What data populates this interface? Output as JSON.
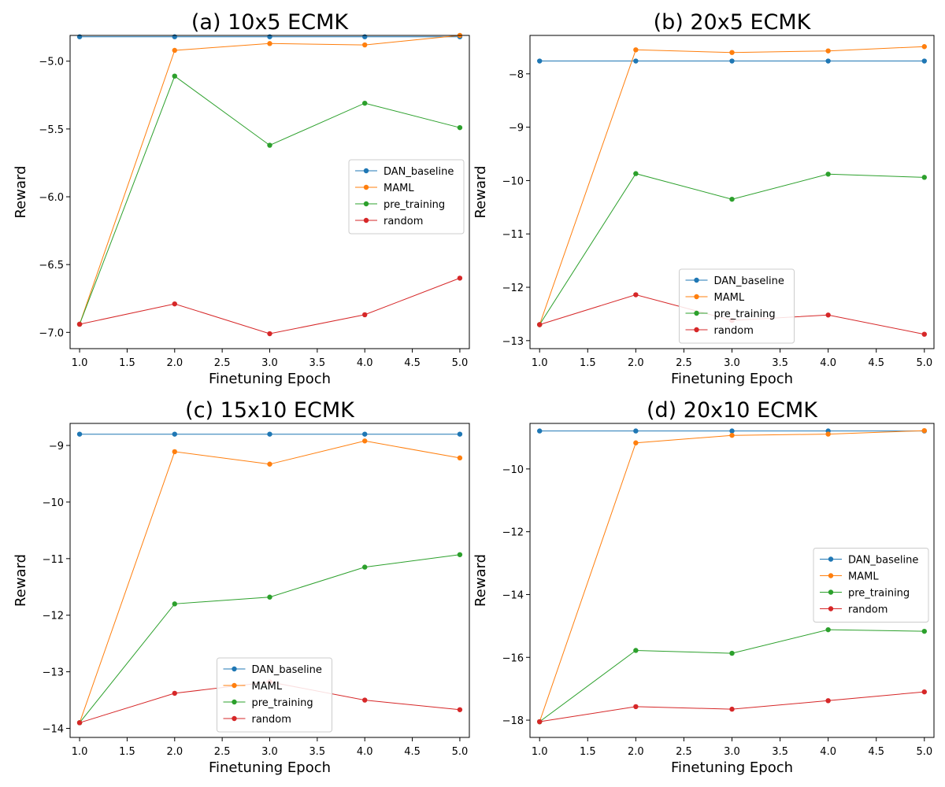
{
  "colors": {
    "DAN_baseline": "#1f77b4",
    "MAML": "#ff7f0e",
    "pre_training": "#2ca02c",
    "random": "#d62728"
  },
  "chart_data": [
    {
      "type": "line",
      "title": "(a) 10x5 ECMK",
      "xlabel": "Finetuning Epoch",
      "ylabel": "Reward",
      "xlim": [
        0.9,
        5.1
      ],
      "ylim": [
        -7.12,
        -4.81
      ],
      "xticks": [
        1.0,
        1.5,
        2.0,
        2.5,
        3.0,
        3.5,
        4.0,
        4.5,
        5.0
      ],
      "xtick_labels": [
        "1.0",
        "1.5",
        "2.0",
        "2.5",
        "3.0",
        "3.5",
        "4.0",
        "4.5",
        "5.0"
      ],
      "yticks": [
        -5.0,
        -5.5,
        -6.0,
        -6.5,
        -7.0
      ],
      "ytick_labels": [
        "−5.0",
        "−5.5",
        "−6.0",
        "−6.5",
        "−7.0"
      ],
      "x": [
        1,
        2,
        3,
        4,
        5
      ],
      "legend": "center-right",
      "series": [
        {
          "name": "DAN_baseline",
          "values": [
            -4.82,
            -4.82,
            -4.82,
            -4.82,
            -4.82
          ]
        },
        {
          "name": "MAML",
          "values": [
            -6.94,
            -4.92,
            -4.87,
            -4.88,
            -4.81
          ]
        },
        {
          "name": "pre_training",
          "values": [
            -6.94,
            -5.11,
            -5.62,
            -5.31,
            -5.49
          ]
        },
        {
          "name": "random",
          "values": [
            -6.94,
            -6.79,
            -7.01,
            -6.87,
            -6.6
          ]
        }
      ]
    },
    {
      "type": "line",
      "title": "(b) 20x5 ECMK",
      "xlabel": "Finetuning Epoch",
      "ylabel": "Reward",
      "xlim": [
        0.9,
        5.1
      ],
      "ylim": [
        -13.15,
        -7.28
      ],
      "xticks": [
        1.0,
        1.5,
        2.0,
        2.5,
        3.0,
        3.5,
        4.0,
        4.5,
        5.0
      ],
      "xtick_labels": [
        "1.0",
        "1.5",
        "2.0",
        "2.5",
        "3.0",
        "3.5",
        "4.0",
        "4.5",
        "5.0"
      ],
      "yticks": [
        -8,
        -9,
        -10,
        -11,
        -12,
        -13
      ],
      "ytick_labels": [
        "−8",
        "−9",
        "−10",
        "−11",
        "−12",
        "−13"
      ],
      "x": [
        1,
        2,
        3,
        4,
        5
      ],
      "legend": "lower-center",
      "series": [
        {
          "name": "DAN_baseline",
          "values": [
            -7.76,
            -7.76,
            -7.76,
            -7.76,
            -7.76
          ]
        },
        {
          "name": "MAML",
          "values": [
            -12.7,
            -7.55,
            -7.6,
            -7.57,
            -7.49
          ]
        },
        {
          "name": "pre_training",
          "values": [
            -12.7,
            -9.87,
            -10.35,
            -9.88,
            -9.94
          ]
        },
        {
          "name": "random",
          "values": [
            -12.7,
            -12.14,
            -12.62,
            -12.52,
            -12.88
          ]
        }
      ]
    },
    {
      "type": "line",
      "title": "(c) 15x10 ECMK",
      "xlabel": "Finetuning Epoch",
      "ylabel": "Reward",
      "xlim": [
        0.9,
        5.1
      ],
      "ylim": [
        -14.16,
        -8.61
      ],
      "xticks": [
        1.0,
        1.5,
        2.0,
        2.5,
        3.0,
        3.5,
        4.0,
        4.5,
        5.0
      ],
      "xtick_labels": [
        "1.0",
        "1.5",
        "2.0",
        "2.5",
        "3.0",
        "3.5",
        "4.0",
        "4.5",
        "5.0"
      ],
      "yticks": [
        -9,
        -10,
        -11,
        -12,
        -13,
        -14
      ],
      "ytick_labels": [
        "−9",
        "−10",
        "−11",
        "−12",
        "−13",
        "−14"
      ],
      "x": [
        1,
        2,
        3,
        4,
        5
      ],
      "legend": "lower-center",
      "series": [
        {
          "name": "DAN_baseline",
          "values": [
            -8.8,
            -8.8,
            -8.8,
            -8.8,
            -8.8
          ]
        },
        {
          "name": "MAML",
          "values": [
            -13.9,
            -9.11,
            -9.33,
            -8.92,
            -9.22
          ]
        },
        {
          "name": "pre_training",
          "values": [
            -13.9,
            -11.8,
            -11.68,
            -11.15,
            -10.93
          ]
        },
        {
          "name": "random",
          "values": [
            -13.9,
            -13.38,
            -13.18,
            -13.5,
            -13.67
          ]
        }
      ]
    },
    {
      "type": "line",
      "title": "(d) 20x10 ECMK",
      "xlabel": "Finetuning Epoch",
      "ylabel": "Reward",
      "xlim": [
        0.9,
        5.1
      ],
      "ylim": [
        -18.55,
        -8.55
      ],
      "xticks": [
        1.0,
        1.5,
        2.0,
        2.5,
        3.0,
        3.5,
        4.0,
        4.5,
        5.0
      ],
      "xtick_labels": [
        "1.0",
        "1.5",
        "2.0",
        "2.5",
        "3.0",
        "3.5",
        "4.0",
        "4.5",
        "5.0"
      ],
      "yticks": [
        -10,
        -12,
        -14,
        -16,
        -18
      ],
      "ytick_labels": [
        "−10",
        "−12",
        "−14",
        "−16",
        "−18"
      ],
      "x": [
        1,
        2,
        3,
        4,
        5
      ],
      "legend": "center-right",
      "series": [
        {
          "name": "DAN_baseline",
          "values": [
            -8.79,
            -8.79,
            -8.79,
            -8.79,
            -8.79
          ]
        },
        {
          "name": "MAML",
          "values": [
            -18.05,
            -9.17,
            -8.93,
            -8.89,
            -8.78
          ]
        },
        {
          "name": "pre_training",
          "values": [
            -18.05,
            -15.78,
            -15.87,
            -15.12,
            -15.17
          ]
        },
        {
          "name": "random",
          "values": [
            -18.05,
            -17.57,
            -17.65,
            -17.38,
            -17.1
          ]
        }
      ]
    }
  ]
}
